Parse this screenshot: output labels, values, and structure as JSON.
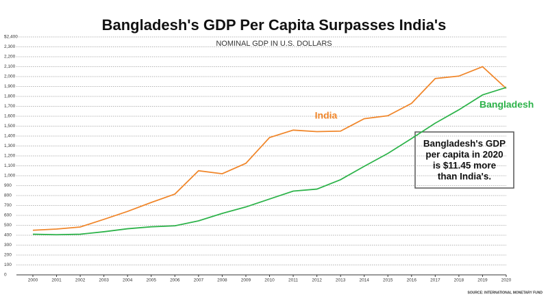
{
  "chart_data": {
    "type": "line",
    "title": "Bangladesh's GDP Per Capita Surpasses India's",
    "subtitle": "NOMINAL GDP IN U.S. DOLLARS",
    "source": "SOURCE: INTERNATIONAL MONETARY FUND",
    "annotation": [
      "Bangladesh's GDP",
      "per capita in 2020",
      "is $11.45 more",
      "than India's."
    ],
    "x": [
      2000,
      2001,
      2002,
      2003,
      2004,
      2005,
      2006,
      2007,
      2008,
      2009,
      2010,
      2011,
      2012,
      2013,
      2014,
      2015,
      2016,
      2017,
      2018,
      2019,
      2020
    ],
    "xlim": [
      2000,
      2020
    ],
    "xticks": [
      2000,
      2001,
      2002,
      2003,
      2004,
      2005,
      2006,
      2007,
      2008,
      2009,
      2010,
      2011,
      2012,
      2013,
      2014,
      2015,
      2016,
      2017,
      2018,
      2019,
      2020
    ],
    "ylim": [
      0,
      2400
    ],
    "yticks": [
      0,
      100,
      200,
      300,
      400,
      500,
      600,
      700,
      800,
      900,
      {
        "value": 1000,
        "label": "1,000"
      },
      {
        "value": 1100,
        "label": "1,100"
      },
      {
        "value": 1200,
        "label": "1,200"
      },
      {
        "value": 1300,
        "label": "1,300"
      },
      {
        "value": 1400,
        "label": "1,400"
      },
      {
        "value": 1500,
        "label": "1,500"
      },
      {
        "value": 1600,
        "label": "1,600"
      },
      {
        "value": 1700,
        "label": "1,700"
      },
      {
        "value": 1800,
        "label": "1,800"
      },
      {
        "value": 1900,
        "label": "1,900"
      },
      {
        "value": 2000,
        "label": "2,000"
      },
      {
        "value": 2100,
        "label": "2,100"
      },
      {
        "value": 2200,
        "label": "2,200"
      },
      {
        "value": 2300,
        "label": "2,300"
      },
      {
        "value": 2400,
        "label": "$2,400"
      }
    ],
    "grid": true,
    "series": [
      {
        "name": "India",
        "color": "#f0862a",
        "values": [
          450,
          462,
          483,
          560,
          640,
          730,
          815,
          1050,
          1020,
          1125,
          1385,
          1460,
          1445,
          1450,
          1575,
          1605,
          1730,
          1980,
          2005,
          2100,
          1880
        ]
      },
      {
        "name": "Bangladesh",
        "color": "#2db34a",
        "values": [
          410,
          405,
          410,
          435,
          465,
          485,
          495,
          545,
          620,
          685,
          765,
          845,
          865,
          960,
          1095,
          1225,
          1375,
          1530,
          1665,
          1815,
          1890
        ]
      }
    ]
  }
}
